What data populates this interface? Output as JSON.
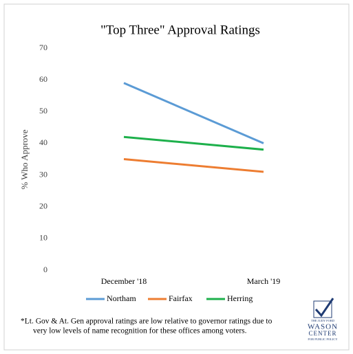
{
  "chart_data": {
    "type": "line",
    "title": "\"Top Three\" Approval Ratings",
    "y_label": "% Who Approve",
    "categories": [
      "December '18",
      "March '19"
    ],
    "series": [
      {
        "name": "Northam",
        "color": "#5b9bd5",
        "values": [
          59,
          40
        ]
      },
      {
        "name": "Fairfax",
        "color": "#ed7d31",
        "values": [
          35,
          31
        ]
      },
      {
        "name": "Herring",
        "color": "#1db04b",
        "values": [
          42,
          38
        ]
      }
    ],
    "ylim": [
      0,
      70
    ],
    "yticks": [
      0,
      10,
      20,
      30,
      40,
      50,
      60,
      70
    ],
    "grid": false,
    "legend": "bottom",
    "footnote": [
      "*Lt. Gov & At. Gen approval ratings are low relative to governor ratings due to",
      "very low levels of name recognition for these offices among voters."
    ],
    "logo": {
      "top": "THE JUDY FORD",
      "name": "WASON",
      "center": "CENTER",
      "sub": "FOR PUBLIC POLICY"
    }
  }
}
